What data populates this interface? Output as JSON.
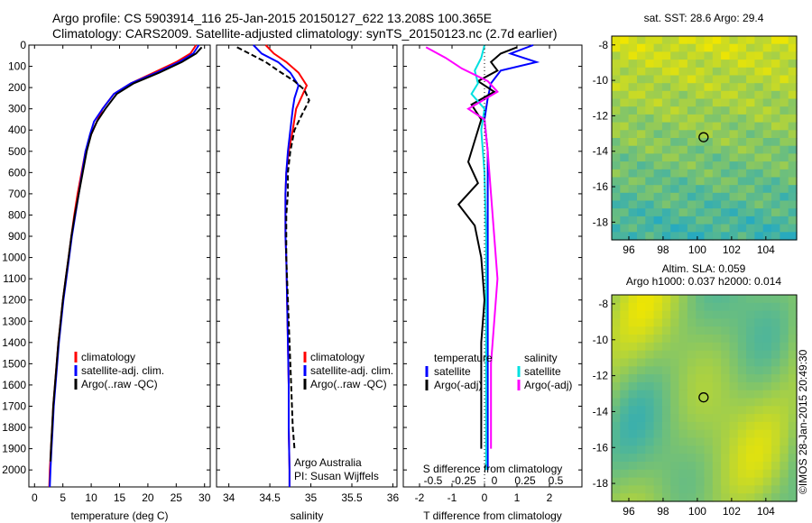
{
  "header": {
    "line1": "Argo profile: CS 5903914_116 25-Jan-2015 20150127_622 13.208S 100.365E",
    "line2": "Climatology: CARS2009. Satellite-adjusted climatology: synTS_20150123.nc (2.7d earlier)"
  },
  "credit": "©IMOS 28-Jan-2015 20:49:30",
  "colors": {
    "climatology": "#ff0000",
    "satellite": "#0000ff",
    "argo": "#000000",
    "sat_salinity": "#00e0e0",
    "argo_salinity": "#ff00ff"
  },
  "chart_data": [
    {
      "type": "line",
      "id": "temperature",
      "xlabel": "temperature (deg C)",
      "ylabel": "",
      "xlim": [
        -1,
        31
      ],
      "ylim": [
        2080,
        0
      ],
      "xticks": [
        "0",
        "5",
        "10",
        "15",
        "20",
        "25",
        "30"
      ],
      "yticks": [
        "0",
        "100",
        "200",
        "300",
        "400",
        "500",
        "600",
        "700",
        "800",
        "900",
        "1000",
        "1100",
        "1200",
        "1300",
        "1400",
        "1500",
        "1600",
        "1700",
        "1800",
        "1900",
        "2000"
      ],
      "legend": [
        "climatology",
        "satellite-adj. clim.",
        "Argo(..raw -QC)"
      ],
      "series": [
        {
          "name": "climatology",
          "color": "#ff0000",
          "points": [
            [
              28.5,
              0
            ],
            [
              27.5,
              40
            ],
            [
              25,
              80
            ],
            [
              21,
              130
            ],
            [
              17,
              180
            ],
            [
              14,
              230
            ],
            [
              12,
              300
            ],
            [
              11,
              360
            ],
            [
              10,
              420
            ],
            [
              9,
              500
            ],
            [
              8.3,
              600
            ],
            [
              7.6,
              700
            ],
            [
              7,
              800
            ],
            [
              6.5,
              900
            ],
            [
              6,
              1000
            ],
            [
              5.5,
              1100
            ],
            [
              5,
              1200
            ],
            [
              4.6,
              1300
            ],
            [
              4.2,
              1400
            ],
            [
              3.9,
              1500
            ],
            [
              3.6,
              1600
            ],
            [
              3.3,
              1700
            ],
            [
              3.1,
              1800
            ],
            [
              2.9,
              1900
            ],
            [
              2.7,
              2000
            ],
            [
              2.6,
              2080
            ]
          ]
        },
        {
          "name": "satellite-adj. clim.",
          "color": "#0000ff",
          "points": [
            [
              29,
              0
            ],
            [
              28,
              40
            ],
            [
              25.5,
              80
            ],
            [
              21.5,
              130
            ],
            [
              17,
              180
            ],
            [
              14,
              230
            ],
            [
              12,
              300
            ],
            [
              10.5,
              360
            ],
            [
              9.8,
              420
            ],
            [
              9,
              500
            ],
            [
              8.4,
              600
            ],
            [
              7.8,
              700
            ],
            [
              7.2,
              800
            ],
            [
              6.6,
              900
            ],
            [
              6.1,
              1000
            ],
            [
              5.6,
              1100
            ],
            [
              5.1,
              1200
            ],
            [
              4.7,
              1300
            ],
            [
              4.3,
              1400
            ],
            [
              4,
              1500
            ],
            [
              3.7,
              1600
            ],
            [
              3.4,
              1700
            ],
            [
              3.2,
              1800
            ],
            [
              3,
              1900
            ],
            [
              2.8,
              2000
            ],
            [
              2.7,
              2080
            ]
          ]
        },
        {
          "name": "Argo(..raw -QC)",
          "color": "#000000",
          "points": [
            [
              29.5,
              10
            ],
            [
              28.5,
              40
            ],
            [
              26,
              80
            ],
            [
              22,
              130
            ],
            [
              17.5,
              180
            ],
            [
              14.5,
              230
            ],
            [
              12.5,
              300
            ],
            [
              11,
              360
            ],
            [
              10,
              420
            ],
            [
              9.2,
              500
            ],
            [
              8.5,
              600
            ],
            [
              7.8,
              700
            ],
            [
              7.1,
              800
            ],
            [
              6.5,
              900
            ],
            [
              6,
              1000
            ],
            [
              5.5,
              1100
            ],
            [
              5,
              1200
            ],
            [
              4.6,
              1300
            ],
            [
              4.2,
              1400
            ],
            [
              3.9,
              1500
            ],
            [
              3.6,
              1600
            ],
            [
              3.3,
              1700
            ],
            [
              3.1,
              1800
            ],
            [
              2.9,
              1900
            ],
            [
              2.8,
              1960
            ]
          ]
        }
      ]
    },
    {
      "type": "line",
      "id": "salinity",
      "xlabel": "salinity",
      "xlim": [
        33.85,
        36.05
      ],
      "ylim": [
        2080,
        0
      ],
      "xticks": [
        "34",
        "34.5",
        "35",
        "35.5",
        "36"
      ],
      "legend": [
        "climatology",
        "satellite-adj. clim.",
        "Argo(..raw -QC)"
      ],
      "annotation": [
        "Argo Australia",
        "PI: Susan Wijffels"
      ],
      "series": [
        {
          "name": "climatology",
          "color": "#ff0000",
          "points": [
            [
              34.45,
              0
            ],
            [
              34.55,
              40
            ],
            [
              34.7,
              80
            ],
            [
              34.85,
              130
            ],
            [
              34.95,
              190
            ],
            [
              34.88,
              250
            ],
            [
              34.82,
              300
            ],
            [
              34.78,
              400
            ],
            [
              34.73,
              500
            ],
            [
              34.7,
              600
            ],
            [
              34.69,
              700
            ],
            [
              34.69,
              800
            ],
            [
              34.69,
              900
            ],
            [
              34.7,
              1000
            ],
            [
              34.71,
              1200
            ],
            [
              34.72,
              1400
            ],
            [
              34.73,
              1600
            ],
            [
              34.73,
              1800
            ],
            [
              34.74,
              2000
            ],
            [
              34.74,
              2080
            ]
          ]
        },
        {
          "name": "satellite-adj. clim.",
          "color": "#0000ff",
          "points": [
            [
              34.3,
              0
            ],
            [
              34.4,
              40
            ],
            [
              34.6,
              80
            ],
            [
              34.75,
              130
            ],
            [
              34.85,
              190
            ],
            [
              34.8,
              250
            ],
            [
              34.78,
              300
            ],
            [
              34.75,
              400
            ],
            [
              34.72,
              500
            ],
            [
              34.7,
              600
            ],
            [
              34.69,
              700
            ],
            [
              34.69,
              800
            ],
            [
              34.69,
              900
            ],
            [
              34.7,
              1000
            ],
            [
              34.71,
              1200
            ],
            [
              34.72,
              1400
            ],
            [
              34.73,
              1600
            ],
            [
              34.73,
              1800
            ],
            [
              34.74,
              2000
            ],
            [
              34.74,
              2080
            ]
          ]
        },
        {
          "name": "Argo(..raw -QC)",
          "color": "#000000",
          "points": [
            [
              34.1,
              10
            ],
            [
              34.25,
              40
            ],
            [
              34.45,
              80
            ],
            [
              34.6,
              120
            ],
            [
              34.8,
              170
            ],
            [
              34.92,
              210
            ],
            [
              34.98,
              260
            ],
            [
              34.9,
              320
            ],
            [
              34.8,
              400
            ],
            [
              34.75,
              500
            ],
            [
              34.72,
              600
            ],
            [
              34.72,
              700
            ],
            [
              34.7,
              800
            ],
            [
              34.7,
              900
            ],
            [
              34.7,
              1000
            ],
            [
              34.72,
              1200
            ],
            [
              34.74,
              1400
            ],
            [
              34.76,
              1600
            ],
            [
              34.78,
              1800
            ],
            [
              34.8,
              1900
            ]
          ]
        }
      ]
    },
    {
      "type": "line",
      "id": "difference",
      "xlabel": "T difference from climatology",
      "xlabel_top": "S difference from climatology",
      "xlim": [
        -2.5,
        3
      ],
      "ylim": [
        2080,
        0
      ],
      "xticks": [
        "-2",
        "-1",
        "0",
        "1",
        "2"
      ],
      "xticks_top": [
        "-0.5",
        "-0.25",
        "0",
        "0.25",
        "0.5"
      ],
      "legend_left_title": "temperature",
      "legend_right_title": "salinity",
      "legend_left": [
        "satellite",
        "Argo(-adj)"
      ],
      "legend_right": [
        "satellite",
        "Argo(-adj)"
      ],
      "series": [
        {
          "name": "temperature satellite",
          "color": "#0000ff",
          "points": [
            [
              1.5,
              0
            ],
            [
              0.8,
              40
            ],
            [
              1.6,
              80
            ],
            [
              0.5,
              120
            ],
            [
              0.2,
              180
            ],
            [
              0.1,
              250
            ],
            [
              0,
              350
            ],
            [
              0.1,
              500
            ],
            [
              0.1,
              800
            ],
            [
              0.1,
              1200
            ],
            [
              0.1,
              1600
            ],
            [
              0.1,
              2000
            ]
          ]
        },
        {
          "name": "temperature Argo(-adj)",
          "color": "#000000",
          "points": [
            [
              1,
              10
            ],
            [
              0.5,
              40
            ],
            [
              0.2,
              80
            ],
            [
              0.4,
              120
            ],
            [
              -0.2,
              170
            ],
            [
              0.3,
              220
            ],
            [
              -0.4,
              280
            ],
            [
              -0.1,
              350
            ],
            [
              -0.3,
              450
            ],
            [
              -0.5,
              550
            ],
            [
              -0.2,
              650
            ],
            [
              -0.8,
              750
            ],
            [
              -0.3,
              850
            ],
            [
              -0.1,
              1000
            ],
            [
              0,
              1200
            ],
            [
              -0.1,
              1400
            ],
            [
              -0.1,
              1600
            ],
            [
              -0.1,
              1800
            ],
            [
              -0.1,
              1900
            ]
          ]
        },
        {
          "name": "salinity satellite",
          "color": "#00e0e0",
          "points": [
            [
              0,
              0
            ],
            [
              -0.1,
              60
            ],
            [
              -0.3,
              120
            ],
            [
              -0.2,
              180
            ],
            [
              -0.4,
              230
            ],
            [
              0,
              300
            ],
            [
              -0.1,
              400
            ],
            [
              0,
              600
            ],
            [
              0.05,
              900
            ],
            [
              0.05,
              1200
            ],
            [
              0.05,
              1600
            ],
            [
              0.05,
              2000
            ]
          ]
        },
        {
          "name": "salinity Argo(-adj)",
          "color": "#ff00ff",
          "points": [
            [
              -1.8,
              10
            ],
            [
              -1.2,
              60
            ],
            [
              -0.7,
              110
            ],
            [
              0.1,
              170
            ],
            [
              0.4,
              220
            ],
            [
              -0.5,
              300
            ],
            [
              0,
              350
            ],
            [
              0.1,
              500
            ],
            [
              0.2,
              700
            ],
            [
              0.3,
              900
            ],
            [
              0.4,
              1100
            ],
            [
              0.3,
              1300
            ],
            [
              0.2,
              1500
            ],
            [
              0.2,
              1700
            ],
            [
              0.2,
              1900
            ]
          ]
        }
      ]
    },
    {
      "type": "heatmap",
      "id": "sst-map",
      "title": "sat. SST: 28.6  Argo: 29.4",
      "xlim": [
        95,
        105.8
      ],
      "ylim": [
        -19,
        -7.5
      ],
      "xticks": [
        "96",
        "98",
        "100",
        "102",
        "104"
      ],
      "yticks": [
        "-8",
        "-10",
        "-12",
        "-14",
        "-16",
        "-18"
      ],
      "argo_position": [
        100.365,
        -13.208
      ]
    },
    {
      "type": "heatmap",
      "id": "sla-map",
      "title_lines": [
        "Altim. SLA: 0.059",
        "Argo h1000: 0.037 h2000: 0.014"
      ],
      "xlim": [
        95,
        105.8
      ],
      "ylim": [
        -19,
        -7.5
      ],
      "xticks": [
        "96",
        "98",
        "100",
        "102",
        "104"
      ],
      "yticks": [
        "-8",
        "-10",
        "-12",
        "-14",
        "-16",
        "-18"
      ],
      "argo_position": [
        100.365,
        -13.208
      ]
    }
  ]
}
